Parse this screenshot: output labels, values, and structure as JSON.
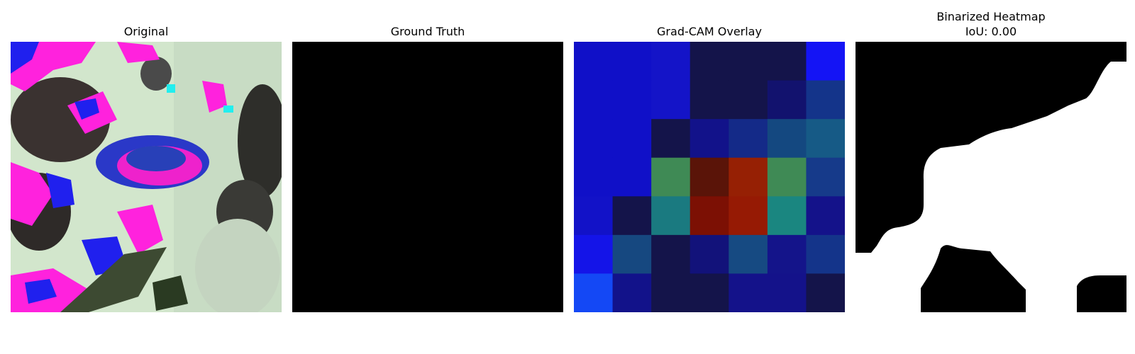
{
  "panels": [
    {
      "title": "Original"
    },
    {
      "title": "Ground Truth"
    },
    {
      "title": "Grad-CAM Overlay"
    },
    {
      "title": "Binarized Heatmap",
      "subtitle": "IoU: 0.00"
    }
  ],
  "chart_data": [
    {
      "type": "heatmap",
      "title": "Original",
      "image": "photograph of leaves with false-color (magenta/blue) pixels and a central blue-magenta seed pod"
    },
    {
      "type": "heatmap",
      "title": "Ground Truth",
      "values": [
        [
          0
        ]
      ]
    },
    {
      "type": "heatmap",
      "title": "Grad-CAM Overlay",
      "grid": [
        [
          "#1010c8",
          "#1010c8",
          "#1414c8",
          "#14144a",
          "#14144a",
          "#14144a",
          "#1414f5"
        ],
        [
          "#1010c8",
          "#1010c8",
          "#1414c8",
          "#14144a",
          "#14144a",
          "#12126e",
          "#14348a"
        ],
        [
          "#1010c8",
          "#1010c8",
          "#14144a",
          "#12128a",
          "#142a88",
          "#144880",
          "#165a86"
        ],
        [
          "#1010c8",
          "#1010c8",
          "#3f8a55",
          "#5a1408",
          "#962004",
          "#3f8a55",
          "#163a8a"
        ],
        [
          "#1212c8",
          "#14144a",
          "#1a7a80",
          "#7c1004",
          "#961a04",
          "#1a8680",
          "#14128a"
        ],
        [
          "#1414e8",
          "#164880",
          "#14144a",
          "#12127a",
          "#164a82",
          "#14148a",
          "#14348a"
        ],
        [
          "#1448f5",
          "#12128a",
          "#14144a",
          "#14144a",
          "#14128a",
          "#14128a",
          "#14144a"
        ]
      ]
    },
    {
      "type": "heatmap",
      "title": "Binarized Heatmap",
      "subtitle": "IoU: 0.00",
      "colors": [
        "#000000",
        "#ffffff"
      ]
    }
  ]
}
